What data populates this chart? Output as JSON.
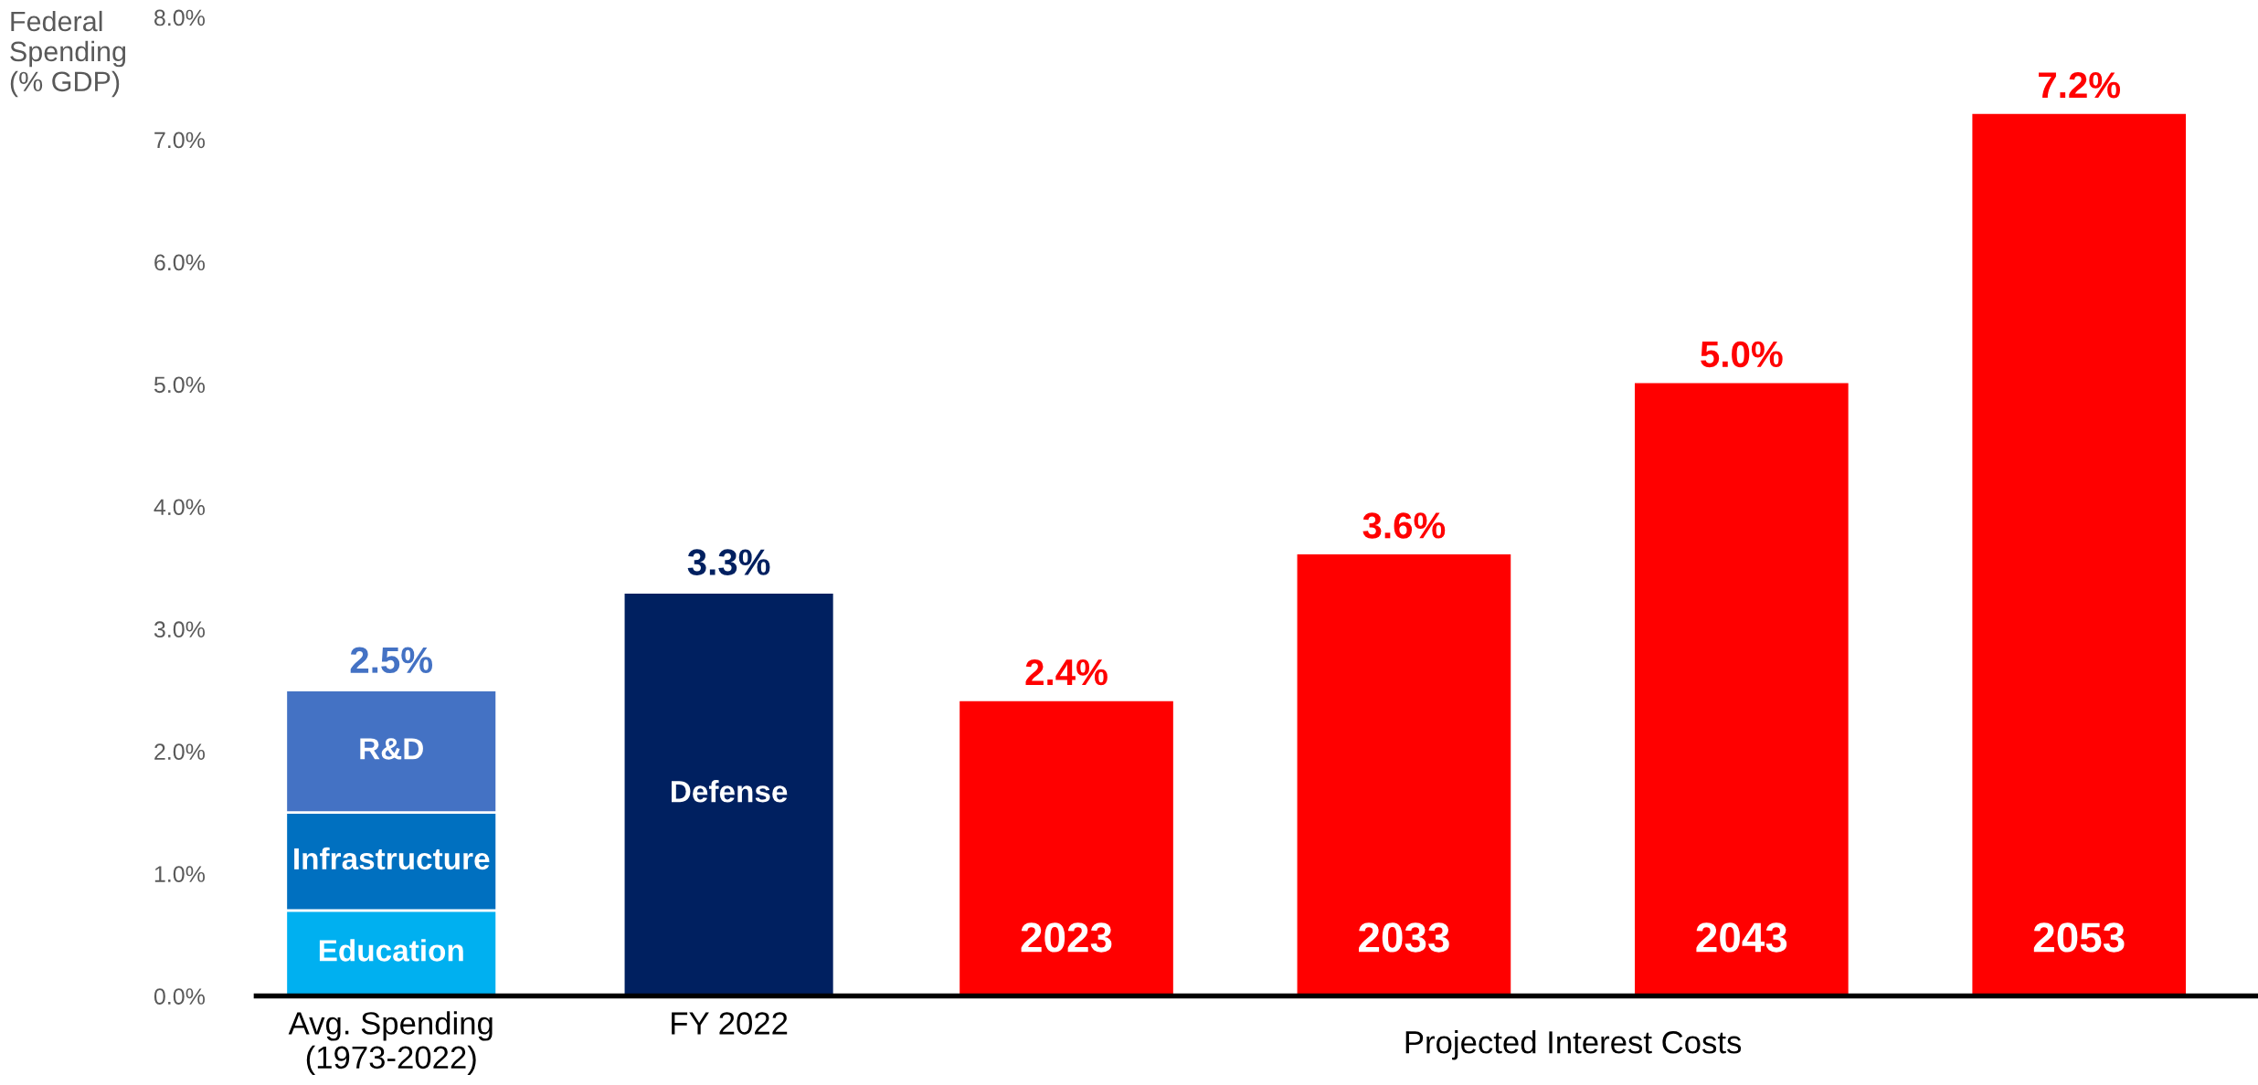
{
  "chart_data": {
    "type": "bar",
    "stacked": true,
    "ylabel": "Federal\nSpending\n(% GDP)",
    "categories": [
      "Avg. Spending\n(1973-2022)",
      "FY 2022",
      "2023",
      "2033",
      "2043",
      "2053"
    ],
    "series": [
      {
        "name": "Education",
        "color": "#00b0f0",
        "values": [
          0.7,
          null,
          null,
          null,
          null,
          null
        ]
      },
      {
        "name": "Infrastructure",
        "color": "#0070c0",
        "values": [
          0.8,
          null,
          null,
          null,
          null,
          null
        ]
      },
      {
        "name": "R&D",
        "color": "#4472c4",
        "values": [
          1.0,
          null,
          null,
          null,
          null,
          null
        ]
      },
      {
        "name": "Defense",
        "color": "#002060",
        "values": [
          null,
          3.3,
          null,
          null,
          null,
          null
        ]
      },
      {
        "color": "#ff0000",
        "values": [
          null,
          null,
          2.4,
          3.6,
          5.0,
          7.2
        ]
      }
    ],
    "totals": [
      "2.5%",
      "3.3%",
      "2.4%",
      "3.6%",
      "5.0%",
      "7.2%"
    ],
    "ylim": [
      0,
      8
    ],
    "yticks": [
      {
        "value": 0,
        "label": "0.0%"
      },
      {
        "value": 1,
        "label": "1.0%"
      },
      {
        "value": 2,
        "label": "2.0%"
      },
      {
        "value": 3,
        "label": "3.0%"
      },
      {
        "value": 4,
        "label": "4.0%"
      },
      {
        "value": 5,
        "label": "5.0%"
      },
      {
        "value": 6,
        "label": "6.0%"
      },
      {
        "value": 7,
        "label": "7.0%"
      },
      {
        "value": 8,
        "label": "8.0%"
      }
    ],
    "grid": false,
    "legend": false,
    "annotations": [
      "Projected Interest Costs"
    ]
  }
}
